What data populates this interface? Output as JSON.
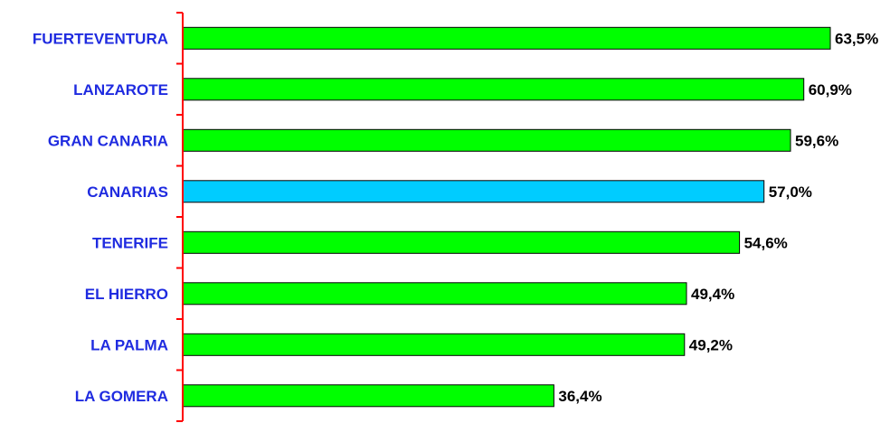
{
  "chart_data": {
    "type": "bar",
    "orientation": "horizontal",
    "categories": [
      "FUERTEVENTURA",
      "LANZAROTE",
      "GRAN CANARIA",
      "CANARIAS",
      "TENERIFE",
      "EL HIERRO",
      "LA PALMA",
      "LA GOMERA"
    ],
    "values": [
      63.5,
      60.9,
      59.6,
      57.0,
      54.6,
      49.4,
      49.2,
      36.4
    ],
    "value_labels": [
      "63,5%",
      "60,9%",
      "59,6%",
      "57,0%",
      "54,6%",
      "49,4%",
      "49,2%",
      "36,4%"
    ],
    "bar_colors": [
      "#00ff00",
      "#00ff00",
      "#00ff00",
      "#00ccff",
      "#00ff00",
      "#00ff00",
      "#00ff00",
      "#00ff00"
    ],
    "label_color": "#1f2be0",
    "axis_color": "#ff0000",
    "xlim": [
      0,
      63.5
    ],
    "grid": false,
    "legend": "none"
  }
}
